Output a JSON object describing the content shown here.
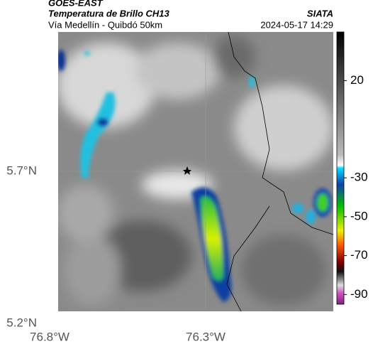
{
  "header": {
    "source": "GOES-EAST",
    "title": "Temperatura de Brillo CH13",
    "brand": "SIATA",
    "route": "Vía Medellín - Quibdó 50km",
    "timestamp": "2024-05-17 14:29"
  },
  "map": {
    "lat_ticks": [
      "5.7°N",
      "5.2°N"
    ],
    "lon_ticks": [
      "76.8°W",
      "76.3°W"
    ]
  },
  "colorbar": {
    "range": [
      -95,
      45
    ],
    "ticks": [
      20,
      -30,
      -50,
      -70,
      -90
    ]
  }
}
